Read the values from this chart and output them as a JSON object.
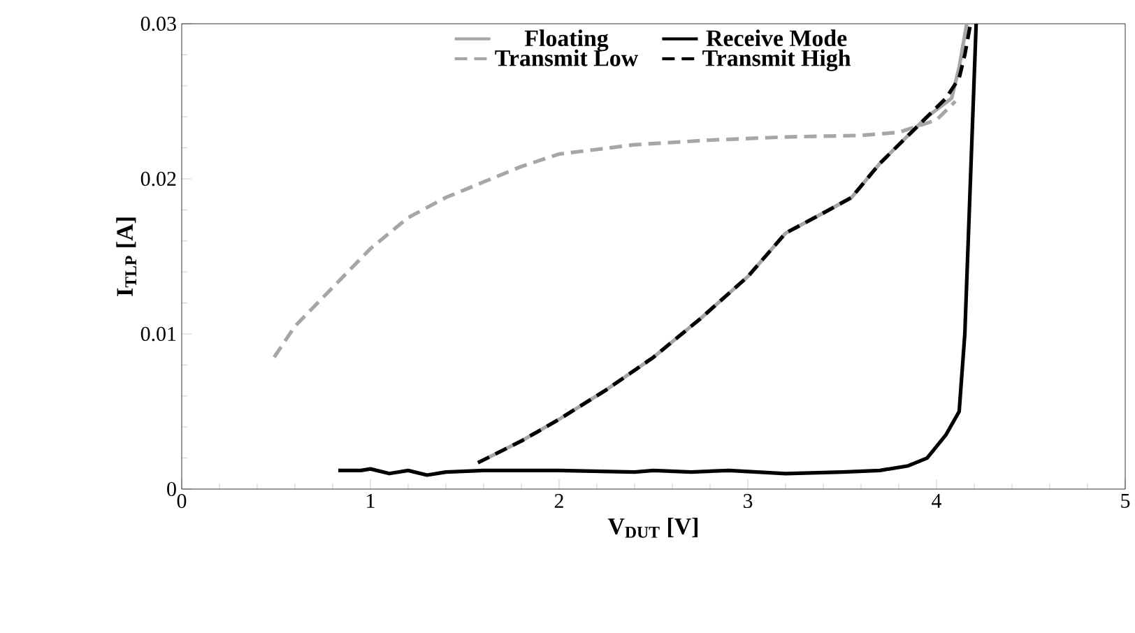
{
  "chart_data": {
    "type": "line",
    "xlabel": "V$_{DUT}$ [V]",
    "ylabel": "I$_{TLP}$ [A]",
    "xlim": [
      0,
      5
    ],
    "xticks": [
      0,
      1,
      2,
      3,
      4,
      5
    ],
    "ylim": [
      0,
      0.03
    ],
    "yticks": [
      0,
      0.01,
      0.02,
      0.03
    ],
    "legend": "top",
    "grid": false,
    "series": [
      {
        "name": "Floating",
        "color": "#a6a6a6",
        "line_style": "solid",
        "x": [
          1.57,
          1.8,
          2.0,
          2.25,
          2.5,
          2.75,
          3.0,
          3.2,
          3.4,
          3.55,
          3.7,
          3.85,
          3.95,
          4.08,
          4.12,
          4.16
        ],
        "values": [
          0.0017,
          0.0031,
          0.0045,
          0.0064,
          0.0085,
          0.011,
          0.0137,
          0.0165,
          0.0178,
          0.0188,
          0.021,
          0.0228,
          0.024,
          0.0252,
          0.0272,
          0.03
        ]
      },
      {
        "name": "Receive Mode",
        "color": "#000000",
        "line_style": "solid",
        "x": [
          0.83,
          0.95,
          1.0,
          1.1,
          1.2,
          1.3,
          1.4,
          1.6,
          2.0,
          2.4,
          2.5,
          2.7,
          2.9,
          3.2,
          3.5,
          3.7,
          3.85,
          3.95,
          4.05,
          4.12,
          4.15,
          4.18,
          4.21
        ],
        "values": [
          0.0012,
          0.0012,
          0.0013,
          0.001,
          0.0012,
          0.0009,
          0.0011,
          0.0012,
          0.0012,
          0.0011,
          0.0012,
          0.0011,
          0.0012,
          0.001,
          0.0011,
          0.0012,
          0.0015,
          0.002,
          0.0035,
          0.005,
          0.01,
          0.02,
          0.03
        ]
      },
      {
        "name": "Transmit Low",
        "color": "#a6a6a6",
        "line_style": "dashed",
        "x": [
          0.49,
          0.6,
          0.8,
          1.0,
          1.2,
          1.4,
          1.6,
          1.8,
          2.0,
          2.4,
          2.8,
          3.2,
          3.6,
          3.8,
          4.0,
          4.1
        ],
        "values": [
          0.0085,
          0.0105,
          0.013,
          0.0155,
          0.0175,
          0.0188,
          0.0198,
          0.0208,
          0.0216,
          0.0222,
          0.0225,
          0.0227,
          0.0228,
          0.023,
          0.0238,
          0.025
        ]
      },
      {
        "name": "Transmit High",
        "color": "#000000",
        "line_style": "dashed",
        "x": [
          1.57,
          1.8,
          2.0,
          2.25,
          2.5,
          2.75,
          3.0,
          3.2,
          3.4,
          3.55,
          3.7,
          3.85,
          3.95,
          4.05,
          4.12,
          4.15,
          4.18
        ],
        "values": [
          0.0017,
          0.0031,
          0.0045,
          0.0064,
          0.0085,
          0.011,
          0.0137,
          0.0165,
          0.0178,
          0.0188,
          0.021,
          0.0228,
          0.024,
          0.0252,
          0.0265,
          0.028,
          0.03
        ]
      }
    ]
  }
}
